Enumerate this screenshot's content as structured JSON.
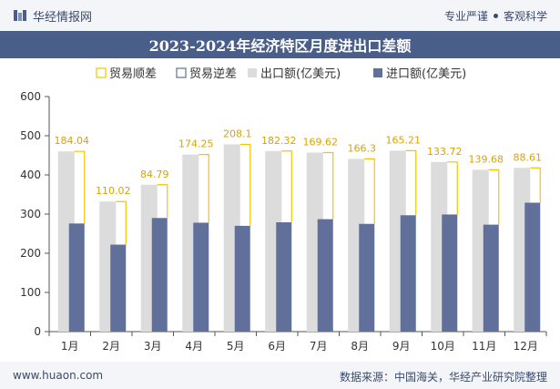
{
  "header": {
    "brand": "华经情报网",
    "taglines": [
      "专业严谨",
      "客观科学"
    ]
  },
  "footer": {
    "url": "www.huaon.com",
    "source": "数据来源：中国海关，华经产业研究院整理"
  },
  "colors": {
    "export": "#dcdcdc",
    "import": "#60709a",
    "surplus": "#f5c400",
    "deficit": "#60709a",
    "title_bg": "#4a5e8a"
  },
  "chart_data": {
    "type": "bar",
    "title": "2023-2024年经济特区月度进出口差额",
    "categories": [
      "1月",
      "2月",
      "3月",
      "4月",
      "5月",
      "6月",
      "7月",
      "8月",
      "9月",
      "10月",
      "11月",
      "12月"
    ],
    "series": [
      {
        "name": "贸易顺差",
        "values": [
          184.04,
          110.02,
          84.79,
          174.25,
          208.1,
          182.32,
          169.62,
          166.3,
          165.21,
          133.72,
          139.68,
          88.61
        ]
      },
      {
        "name": "贸易逆差",
        "values": [
          null,
          null,
          null,
          null,
          null,
          null,
          null,
          null,
          null,
          null,
          null,
          null
        ]
      },
      {
        "name": "出口额(亿美元)",
        "values": [
          460,
          332,
          375,
          452,
          478,
          461,
          457,
          441,
          462,
          433,
          413,
          418
        ]
      },
      {
        "name": "进口额(亿美元)",
        "values": [
          276,
          222,
          290,
          278,
          270,
          279,
          287,
          275,
          297,
          299,
          273,
          329
        ]
      }
    ],
    "ylim": [
      0,
      600
    ],
    "yticks": [
      0,
      100,
      200,
      300,
      400,
      500,
      600
    ],
    "legend_position": "top-center",
    "grid": false
  }
}
